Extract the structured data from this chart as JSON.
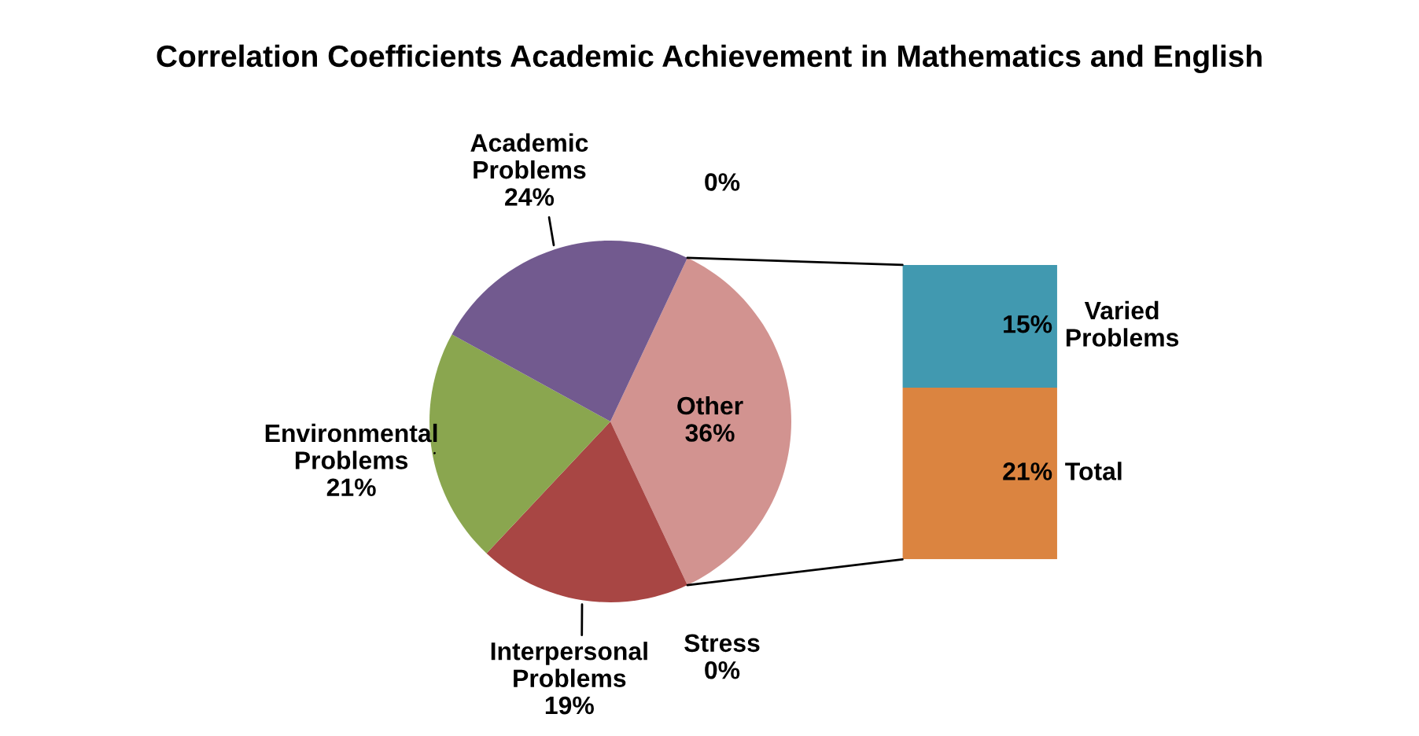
{
  "chart_data": [
    {
      "type": "pie",
      "title": "Correlation Coefficients Academic Achievement in Mathematics and English",
      "categories": [
        "Other",
        "Stress",
        "Interpersonal Problems",
        "Environmental Problems",
        "Academic Problems",
        null
      ],
      "values": [
        36,
        0,
        19,
        21,
        24,
        0
      ],
      "value_labels": [
        "36%",
        "0%",
        "19%",
        "21%",
        "24%",
        "0%"
      ],
      "colors": [
        "#d29390",
        "#c0504d",
        "#a84644",
        "#8aa64f",
        "#725a8f",
        "#4f81bd"
      ]
    },
    {
      "type": "bar",
      "stacked": true,
      "categories": [
        null
      ],
      "series": [
        {
          "name": "Total",
          "color": "#db8440",
          "values": [
            21
          ],
          "value_labels": [
            "21%"
          ]
        },
        {
          "name": "Varied Problems",
          "color": "#4199b0",
          "values": [
            15
          ],
          "value_labels": [
            "15%"
          ]
        }
      ]
    }
  ]
}
